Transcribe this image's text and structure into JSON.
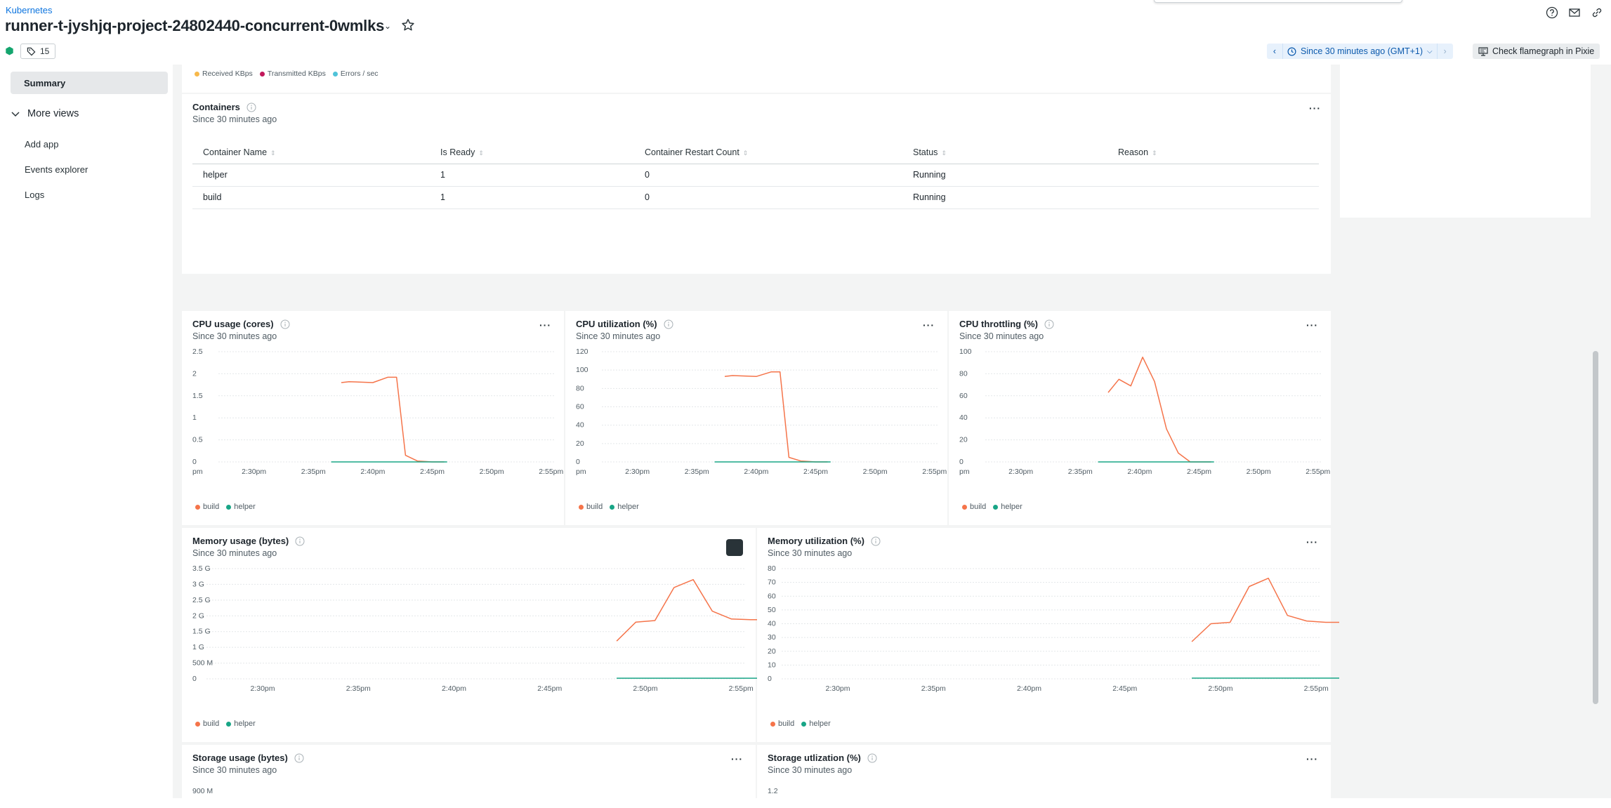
{
  "header": {
    "breadcrumb": "Kubernetes",
    "title": "runner-t-jyshjq-project-24802440-concurrent-0wmlks",
    "tag_count": "15",
    "time_range": "Since 30 minutes ago (GMT+1)",
    "flamegraph_label": "Check flamegraph in Pixie"
  },
  "sidebar": {
    "summary": "Summary",
    "more_views": "More views",
    "items": [
      "Add app",
      "Events explorer",
      "Logs"
    ]
  },
  "network_legend": [
    "Received KBps",
    "Transmitted KBps",
    "Errors / sec"
  ],
  "containers": {
    "title": "Containers",
    "subtitle": "Since 30 minutes ago",
    "columns": [
      "Container Name",
      "Is Ready",
      "Container Restart Count",
      "Status",
      "Reason"
    ],
    "rows": [
      [
        "helper",
        "1",
        "0",
        "Running",
        ""
      ],
      [
        "build",
        "1",
        "0",
        "Running",
        ""
      ]
    ]
  },
  "colors": {
    "build": "#f5744a",
    "helper": "#18a586",
    "accent": "#0c74df"
  },
  "charts": {
    "cpu_usage": {
      "title": "CPU usage (cores)",
      "subtitle": "Since 30 minutes ago"
    },
    "cpu_util": {
      "title": "CPU utilization (%)",
      "subtitle": "Since 30 minutes ago"
    },
    "cpu_throttle": {
      "title": "CPU throttling (%)",
      "subtitle": "Since 30 minutes ago"
    },
    "mem_usage": {
      "title": "Memory usage (bytes)",
      "subtitle": "Since 30 minutes ago"
    },
    "mem_util": {
      "title": "Memory utilization (%)",
      "subtitle": "Since 30 minutes ago"
    },
    "storage_usage": {
      "title": "Storage usage (bytes)",
      "subtitle": "Since 30 minutes ago",
      "first_tick": "900 M"
    },
    "storage_util": {
      "title": "Storage utlization (%)",
      "subtitle": "Since 30 minutes ago",
      "first_tick": "1.2"
    }
  },
  "legend": {
    "build": "build",
    "helper": "helper"
  },
  "chart_data": [
    {
      "id": "cpu_usage",
      "type": "line",
      "x_ticks": [
        "pm",
        "2:30pm",
        "2:35pm",
        "2:40pm",
        "2:45pm",
        "2:50pm",
        "2:55pm"
      ],
      "y_ticks": [
        "0",
        "0.5",
        "1",
        "1.5",
        "2",
        "2.5"
      ],
      "ylim": [
        0,
        2.5
      ],
      "series": [
        {
          "name": "build",
          "x": [
            2.47,
            2.6,
            3.0,
            3.25,
            3.4,
            3.55,
            3.75,
            4.0,
            4.2
          ],
          "values": [
            1.8,
            1.82,
            1.8,
            1.92,
            1.92,
            0.15,
            0.02,
            0.0,
            0.0
          ]
        },
        {
          "name": "helper",
          "x": [
            2.3,
            4.25
          ],
          "values": [
            0.0,
            0.0
          ]
        }
      ]
    },
    {
      "id": "cpu_util",
      "type": "line",
      "x_ticks": [
        "pm",
        "2:30pm",
        "2:35pm",
        "2:40pm",
        "2:45pm",
        "2:50pm",
        "2:55pm"
      ],
      "y_ticks": [
        "0",
        "20",
        "40",
        "60",
        "80",
        "100",
        "120"
      ],
      "ylim": [
        0,
        120
      ],
      "series": [
        {
          "name": "build",
          "x": [
            2.47,
            2.6,
            3.0,
            3.25,
            3.4,
            3.55,
            3.75,
            4.0,
            4.2
          ],
          "values": [
            93,
            94,
            93,
            98,
            98,
            5,
            1,
            0,
            0
          ]
        },
        {
          "name": "helper",
          "x": [
            2.3,
            4.25
          ],
          "values": [
            0,
            0
          ]
        }
      ]
    },
    {
      "id": "cpu_throttle",
      "type": "line",
      "x_ticks": [
        "pm",
        "2:30pm",
        "2:35pm",
        "2:40pm",
        "2:45pm",
        "2:50pm",
        "2:55pm"
      ],
      "y_ticks": [
        "0",
        "20",
        "40",
        "60",
        "80",
        "100"
      ],
      "ylim": [
        0,
        100
      ],
      "series": [
        {
          "name": "build",
          "x": [
            2.47,
            2.65,
            2.85,
            3.05,
            3.25,
            3.45,
            3.65,
            3.85,
            4.05,
            4.2
          ],
          "values": [
            63,
            75,
            69,
            95,
            73,
            30,
            8,
            0,
            0,
            0
          ]
        },
        {
          "name": "helper",
          "x": [
            2.3,
            4.25
          ],
          "values": [
            0,
            0
          ]
        }
      ]
    },
    {
      "id": "mem_usage",
      "type": "line",
      "x_ticks": [
        "2:30pm",
        "2:35pm",
        "2:40pm",
        "2:45pm",
        "2:50pm",
        "2:55pm"
      ],
      "y_ticks": [
        "0",
        "500 M",
        "1 G",
        "1.5 G",
        "2 G",
        "2.5 G",
        "3 G",
        "3.5 G"
      ],
      "ylim": [
        0,
        3.5
      ],
      "series": [
        {
          "name": "build",
          "x": [
            3.7,
            3.9,
            4.1,
            4.3,
            4.5,
            4.7,
            4.9,
            5.1,
            5.3,
            5.5
          ],
          "values": [
            1.2,
            1.8,
            1.85,
            2.9,
            3.15,
            2.15,
            1.9,
            1.88,
            1.88,
            1.88
          ]
        },
        {
          "name": "helper",
          "x": [
            3.7,
            5.5
          ],
          "values": [
            0.02,
            0.02
          ]
        }
      ]
    },
    {
      "id": "mem_util",
      "type": "line",
      "x_ticks": [
        "2:30pm",
        "2:35pm",
        "2:40pm",
        "2:45pm",
        "2:50pm",
        "2:55pm"
      ],
      "y_ticks": [
        "0",
        "10",
        "20",
        "30",
        "40",
        "50",
        "60",
        "70",
        "80"
      ],
      "ylim": [
        0,
        80
      ],
      "series": [
        {
          "name": "build",
          "x": [
            3.7,
            3.9,
            4.1,
            4.3,
            4.5,
            4.7,
            4.9,
            5.1,
            5.3,
            5.5
          ],
          "values": [
            27,
            40,
            41,
            67,
            73,
            46,
            42,
            41,
            41,
            41
          ]
        },
        {
          "name": "helper",
          "x": [
            3.7,
            5.5
          ],
          "values": [
            0.5,
            0.5
          ]
        }
      ]
    }
  ]
}
